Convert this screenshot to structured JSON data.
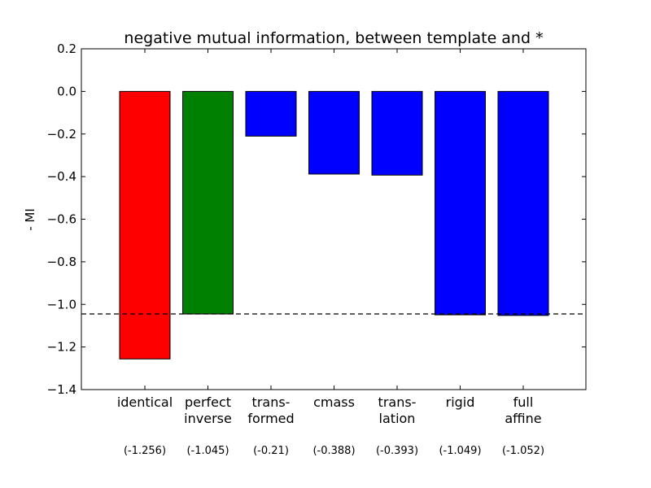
{
  "chart_data": {
    "type": "bar",
    "title": "negative mutual information, between template and *",
    "xlabel": "",
    "ylabel": "- MI",
    "ylim": [
      -1.4,
      0.2
    ],
    "yticks": [
      0.2,
      0.0,
      -0.2,
      -0.4,
      -0.6,
      -0.8,
      -1.0,
      -1.2,
      -1.4
    ],
    "ytick_labels": [
      "0.2",
      "0.0",
      "−0.2",
      "−0.4",
      "−0.6",
      "−0.8",
      "−1.0",
      "−1.2",
      "−1.4"
    ],
    "categories": [
      [
        "identical"
      ],
      [
        "perfect",
        "inverse"
      ],
      [
        "trans-",
        "formed"
      ],
      [
        "cmass"
      ],
      [
        "trans-",
        "lation"
      ],
      [
        "rigid"
      ],
      [
        "full",
        "affine"
      ]
    ],
    "values": [
      -1.256,
      -1.045,
      -0.21,
      -0.388,
      -0.393,
      -1.049,
      -1.052
    ],
    "value_labels": [
      "(-1.256)",
      "(-1.045)",
      "(-0.21)",
      "(-0.388)",
      "(-0.393)",
      "(-1.049)",
      "(-1.052)"
    ],
    "colors": [
      "#ff0000",
      "#008000",
      "#0000ff",
      "#0000ff",
      "#0000ff",
      "#0000ff",
      "#0000ff"
    ],
    "reference_line": {
      "value": -1.045,
      "style": "dashed"
    },
    "grid": false,
    "legend": "none"
  }
}
